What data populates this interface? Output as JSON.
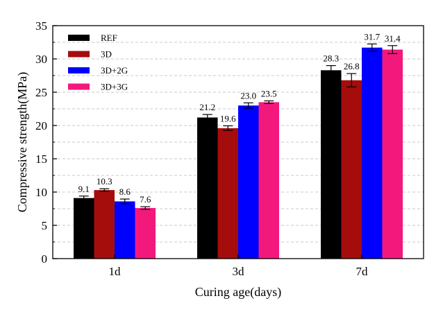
{
  "chart_data": {
    "type": "bar",
    "categories": [
      "1d",
      "3d",
      "7d"
    ],
    "series": [
      {
        "name": "REF",
        "color": "#000000",
        "values": [
          9.1,
          21.2,
          28.3
        ],
        "errors": [
          0.3,
          0.45,
          0.7
        ],
        "labels": [
          "9.1",
          "21.2",
          "28.3"
        ]
      },
      {
        "name": "3D",
        "color": "#a50d0d",
        "values": [
          10.3,
          19.6,
          26.8
        ],
        "errors": [
          0.2,
          0.35,
          1.0
        ],
        "labels": [
          "10.3",
          "19.6",
          "26.8"
        ]
      },
      {
        "name": "3D+2G",
        "color": "#0000ff",
        "values": [
          8.6,
          23.0,
          31.7
        ],
        "errors": [
          0.35,
          0.4,
          0.55
        ],
        "labels": [
          "8.6",
          "23.0",
          "31.7"
        ]
      },
      {
        "name": "3D+3G",
        "color": "#f3197c",
        "values": [
          7.6,
          23.5,
          31.4
        ],
        "errors": [
          0.2,
          0.2,
          0.6
        ],
        "labels": [
          "7.6",
          "23.5",
          "31.4"
        ]
      }
    ],
    "ylim": [
      0,
      35
    ],
    "yticks": [
      0,
      5,
      10,
      15,
      20,
      25,
      30,
      35
    ],
    "xlabel": "Curing age(days)",
    "ylabel": "Compressive strength(MPa)",
    "grid": "dashed horizontal",
    "legend_position": "top-left"
  }
}
